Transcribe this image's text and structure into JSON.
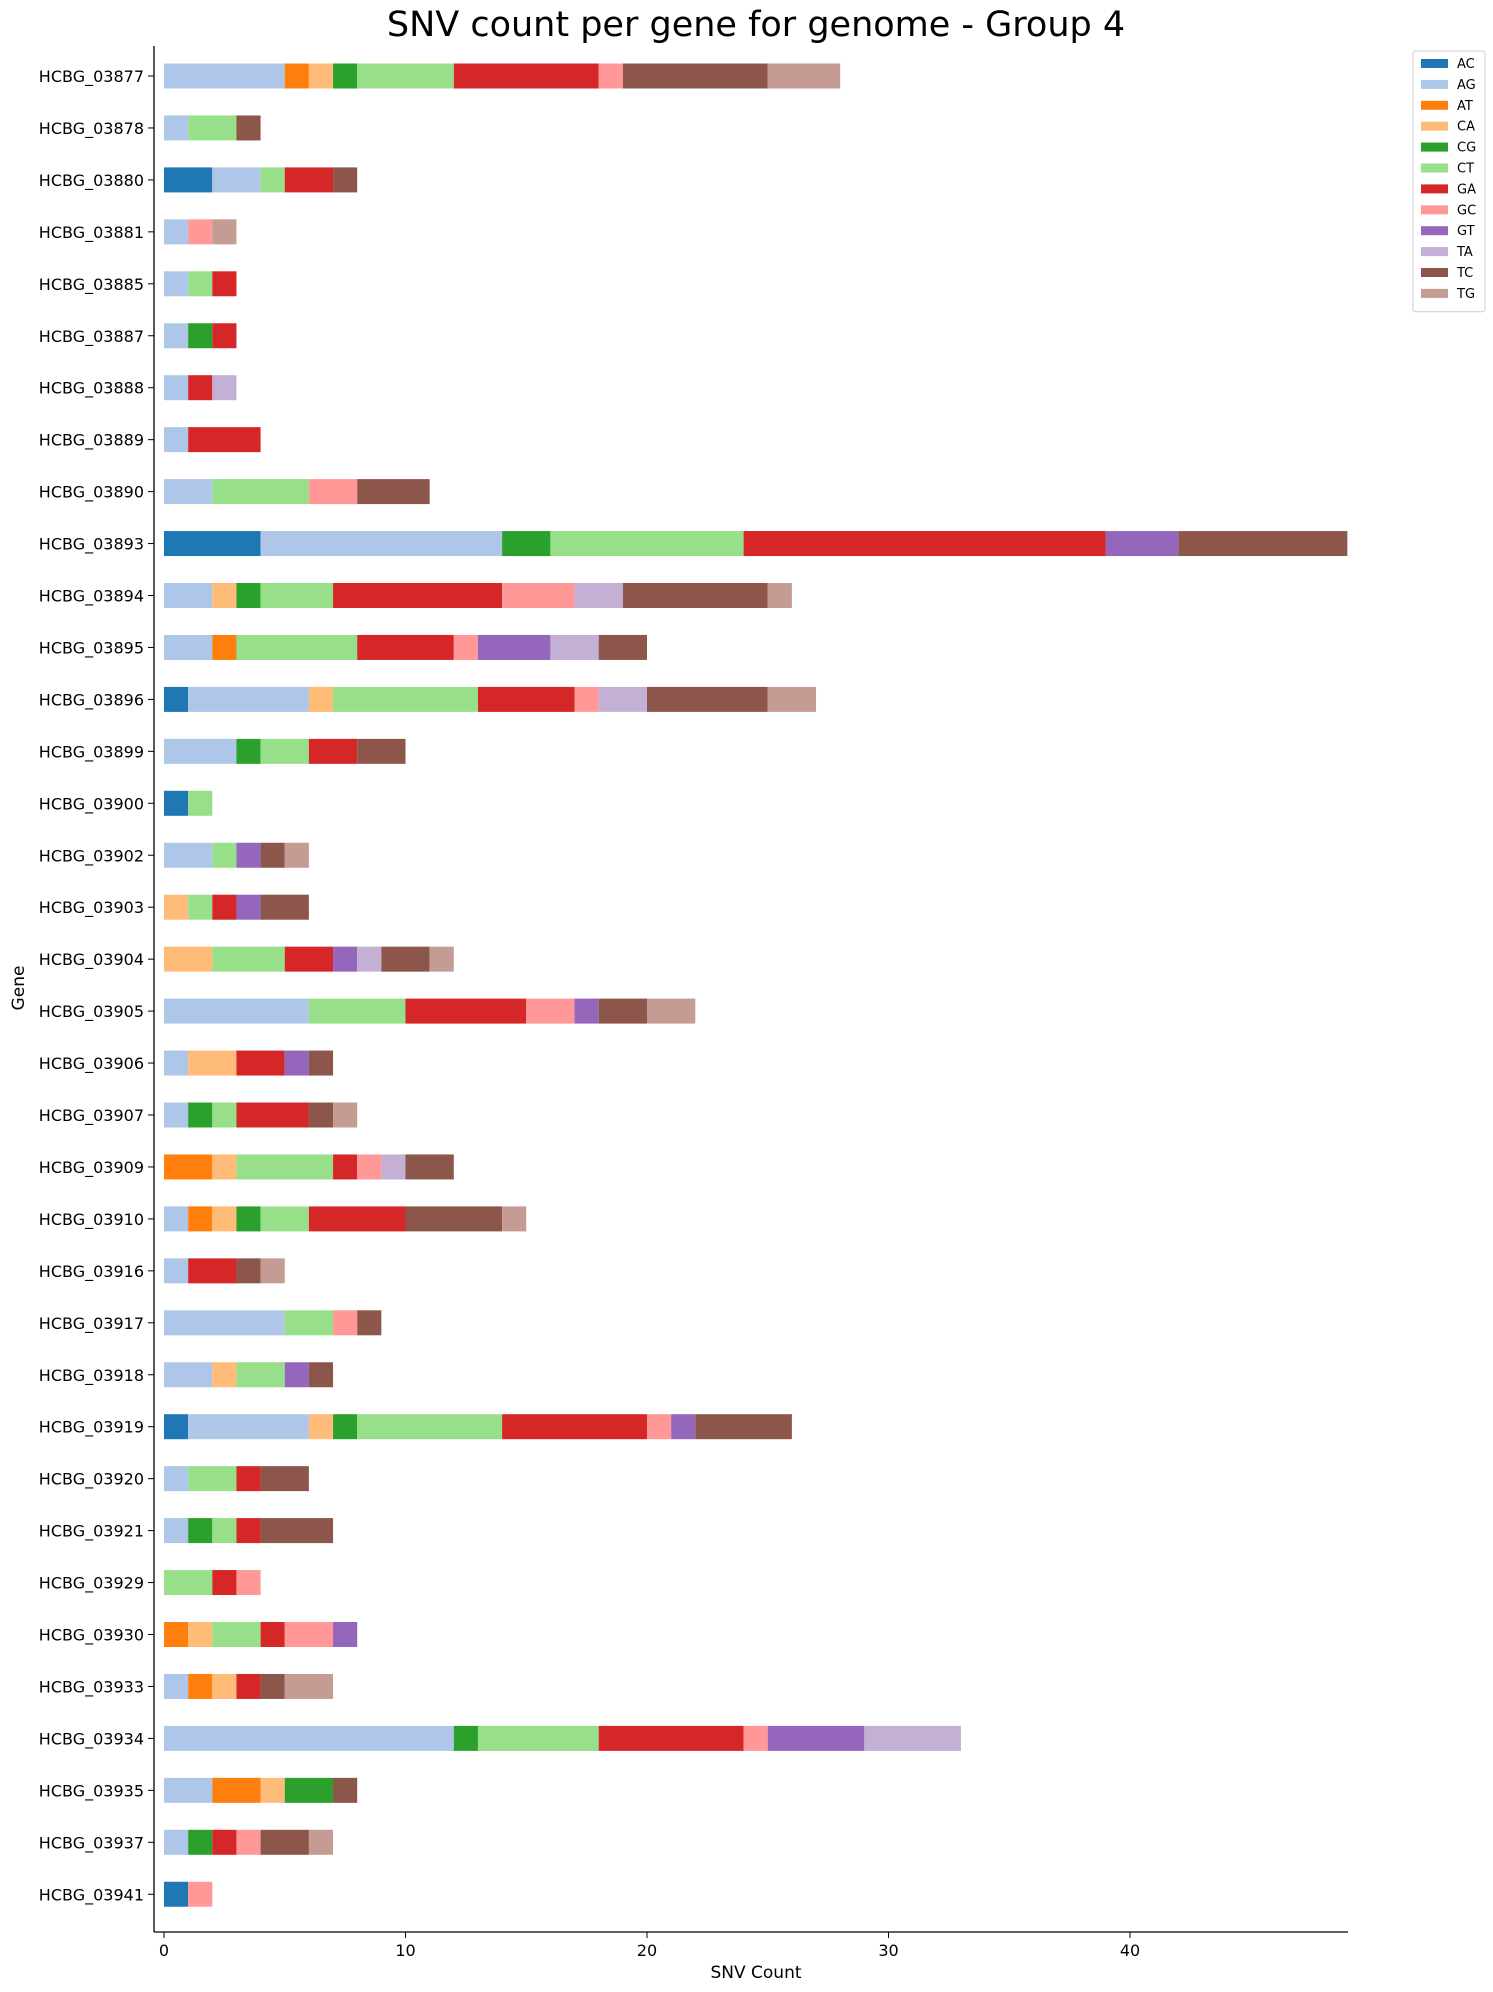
{
  "chart_data": {
    "type": "bar",
    "orientation": "horizontal",
    "stacked": true,
    "title": "SNV count per gene for genome - Group 4",
    "xlabel": "SNV Count",
    "ylabel": "Gene",
    "xlim": [
      0,
      49
    ],
    "xticks": [
      0,
      10,
      20,
      30,
      40
    ],
    "grid": false,
    "legend_position": "top-right",
    "categories": [
      "HCBG_03877",
      "HCBG_03878",
      "HCBG_03880",
      "HCBG_03881",
      "HCBG_03885",
      "HCBG_03887",
      "HCBG_03888",
      "HCBG_03889",
      "HCBG_03890",
      "HCBG_03893",
      "HCBG_03894",
      "HCBG_03895",
      "HCBG_03896",
      "HCBG_03899",
      "HCBG_03900",
      "HCBG_03902",
      "HCBG_03903",
      "HCBG_03904",
      "HCBG_03905",
      "HCBG_03906",
      "HCBG_03907",
      "HCBG_03909",
      "HCBG_03910",
      "HCBG_03916",
      "HCBG_03917",
      "HCBG_03918",
      "HCBG_03919",
      "HCBG_03920",
      "HCBG_03921",
      "HCBG_03929",
      "HCBG_03930",
      "HCBG_03933",
      "HCBG_03934",
      "HCBG_03935",
      "HCBG_03937",
      "HCBG_03941"
    ],
    "series": [
      {
        "name": "AC",
        "color": "#1f77b4",
        "values": [
          0,
          0,
          2,
          0,
          0,
          0,
          0,
          0,
          0,
          4,
          0,
          0,
          1,
          0,
          1,
          0,
          0,
          0,
          0,
          0,
          0,
          0,
          0,
          0,
          0,
          0,
          1,
          0,
          0,
          0,
          0,
          0,
          0,
          0,
          0,
          1
        ]
      },
      {
        "name": "AG",
        "color": "#aec7e8",
        "values": [
          5,
          1,
          2,
          1,
          1,
          1,
          1,
          1,
          2,
          10,
          2,
          2,
          5,
          3,
          0,
          2,
          0,
          0,
          6,
          1,
          1,
          0,
          1,
          1,
          5,
          2,
          5,
          1,
          1,
          0,
          0,
          1,
          12,
          2,
          1,
          0
        ]
      },
      {
        "name": "AT",
        "color": "#ff7f0e",
        "values": [
          1,
          0,
          0,
          0,
          0,
          0,
          0,
          0,
          0,
          0,
          0,
          1,
          0,
          0,
          0,
          0,
          0,
          0,
          0,
          0,
          0,
          2,
          1,
          0,
          0,
          0,
          0,
          0,
          0,
          0,
          1,
          1,
          0,
          2,
          0,
          0
        ]
      },
      {
        "name": "CA",
        "color": "#ffbb78",
        "values": [
          1,
          0,
          0,
          0,
          0,
          0,
          0,
          0,
          0,
          0,
          1,
          0,
          1,
          0,
          0,
          0,
          1,
          2,
          0,
          2,
          0,
          1,
          1,
          0,
          0,
          1,
          1,
          0,
          0,
          0,
          1,
          1,
          0,
          1,
          0,
          0
        ]
      },
      {
        "name": "CG",
        "color": "#2ca02c",
        "values": [
          1,
          0,
          0,
          0,
          0,
          1,
          0,
          0,
          0,
          2,
          1,
          0,
          0,
          1,
          0,
          0,
          0,
          0,
          0,
          0,
          1,
          0,
          1,
          0,
          0,
          0,
          1,
          0,
          1,
          0,
          0,
          0,
          1,
          2,
          1,
          0
        ]
      },
      {
        "name": "CT",
        "color": "#98df8a",
        "values": [
          4,
          2,
          1,
          0,
          1,
          0,
          0,
          0,
          4,
          8,
          3,
          5,
          6,
          2,
          1,
          1,
          1,
          3,
          4,
          0,
          1,
          4,
          2,
          0,
          2,
          2,
          6,
          2,
          1,
          2,
          2,
          0,
          5,
          0,
          0,
          0
        ]
      },
      {
        "name": "GA",
        "color": "#d62728",
        "values": [
          6,
          0,
          2,
          0,
          1,
          1,
          1,
          3,
          0,
          15,
          7,
          4,
          4,
          2,
          0,
          0,
          1,
          2,
          5,
          2,
          3,
          1,
          4,
          2,
          0,
          0,
          6,
          1,
          1,
          1,
          1,
          1,
          6,
          0,
          1,
          0
        ]
      },
      {
        "name": "GC",
        "color": "#ff9896",
        "values": [
          1,
          0,
          0,
          1,
          0,
          0,
          0,
          0,
          2,
          0,
          3,
          1,
          1,
          0,
          0,
          0,
          0,
          0,
          2,
          0,
          0,
          1,
          0,
          0,
          1,
          0,
          1,
          0,
          0,
          1,
          2,
          0,
          1,
          0,
          1,
          1
        ]
      },
      {
        "name": "GT",
        "color": "#9467bd",
        "values": [
          0,
          0,
          0,
          0,
          0,
          0,
          0,
          0,
          0,
          3,
          0,
          3,
          0,
          0,
          0,
          1,
          1,
          1,
          1,
          1,
          0,
          0,
          0,
          0,
          0,
          1,
          1,
          0,
          0,
          0,
          1,
          0,
          4,
          0,
          0,
          0
        ]
      },
      {
        "name": "TA",
        "color": "#c5b0d5",
        "values": [
          0,
          0,
          0,
          0,
          0,
          0,
          1,
          0,
          0,
          0,
          2,
          2,
          2,
          0,
          0,
          0,
          0,
          1,
          0,
          0,
          0,
          1,
          0,
          0,
          0,
          0,
          0,
          0,
          0,
          0,
          0,
          0,
          4,
          0,
          0,
          0
        ]
      },
      {
        "name": "TC",
        "color": "#8c564b",
        "values": [
          6,
          1,
          1,
          0,
          0,
          0,
          0,
          0,
          3,
          7,
          6,
          2,
          5,
          2,
          0,
          1,
          2,
          2,
          2,
          1,
          1,
          2,
          4,
          1,
          1,
          1,
          4,
          2,
          3,
          0,
          0,
          1,
          0,
          1,
          2,
          0
        ]
      },
      {
        "name": "TG",
        "color": "#c49c94",
        "values": [
          3,
          0,
          0,
          1,
          0,
          0,
          0,
          0,
          0,
          0,
          1,
          0,
          2,
          0,
          0,
          1,
          0,
          1,
          2,
          0,
          1,
          0,
          1,
          1,
          0,
          0,
          0,
          0,
          0,
          0,
          0,
          2,
          0,
          0,
          1,
          0
        ]
      }
    ]
  }
}
